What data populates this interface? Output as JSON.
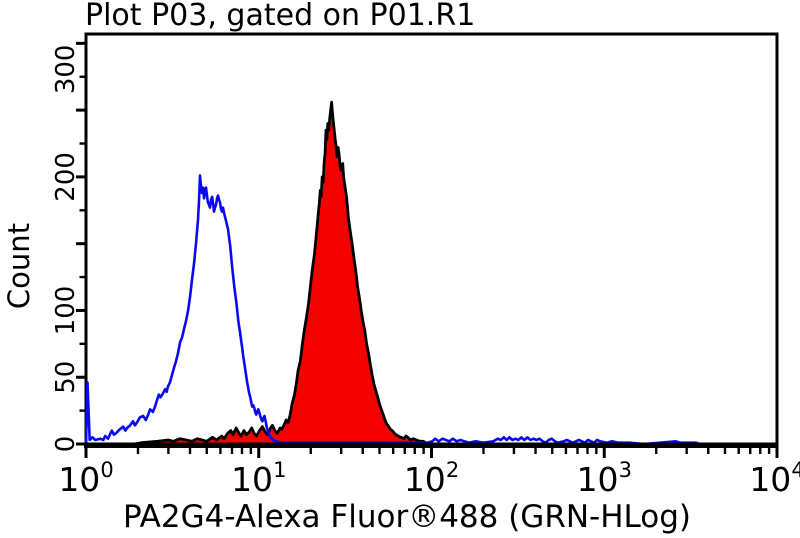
{
  "figure": {
    "background": "#ffffff",
    "plot_border_color": "#000000"
  },
  "chart_data": {
    "type": "area",
    "subtype": "flow-cytometry-overlay-histogram",
    "title": "Plot P03, gated on P01.R1",
    "xlabel": "PA2G4-Alexa Fluor®488 (GRN-HLog)",
    "ylabel": "Count",
    "x_scale": "log10",
    "xlim": [
      1,
      10000
    ],
    "ylim": [
      0,
      307
    ],
    "grid": false,
    "legend": "none",
    "x_ticks": {
      "base_text": "10",
      "exponents": [
        0,
        1,
        2,
        3,
        4
      ],
      "values": [
        1,
        10,
        100,
        1000,
        10000
      ],
      "minor_multiples": [
        2,
        3,
        4,
        5,
        6,
        7,
        8,
        9
      ]
    },
    "y_ticks": {
      "major_step": 50,
      "minor_step": 25,
      "labeled": [
        0,
        50,
        100,
        200,
        300
      ]
    },
    "series": [
      {
        "name": "control (open blue histogram)",
        "style": "open",
        "line_color": "#0a0af2",
        "fill": "none",
        "peak": {
          "x": 4.6,
          "count": 201
        },
        "points": [
          [
            1.0,
            0
          ],
          [
            1.02,
            46
          ],
          [
            1.05,
            3
          ],
          [
            1.09,
            5
          ],
          [
            1.13,
            3
          ],
          [
            1.21,
            4
          ],
          [
            1.26,
            3
          ],
          [
            1.29,
            6
          ],
          [
            1.34,
            4
          ],
          [
            1.41,
            10
          ],
          [
            1.45,
            7
          ],
          [
            1.49,
            8
          ],
          [
            1.57,
            11
          ],
          [
            1.64,
            13
          ],
          [
            1.69,
            10
          ],
          [
            1.73,
            12
          ],
          [
            1.8,
            14
          ],
          [
            1.87,
            17
          ],
          [
            1.92,
            14
          ],
          [
            1.97,
            16
          ],
          [
            2.05,
            20
          ],
          [
            2.14,
            21
          ],
          [
            2.22,
            18
          ],
          [
            2.29,
            22
          ],
          [
            2.35,
            26
          ],
          [
            2.44,
            24
          ],
          [
            2.51,
            28
          ],
          [
            2.58,
            33
          ],
          [
            2.64,
            37
          ],
          [
            2.7,
            35
          ],
          [
            2.79,
            38
          ],
          [
            2.87,
            41
          ],
          [
            2.93,
            39
          ],
          [
            2.98,
            43
          ],
          [
            3.06,
            46
          ],
          [
            3.15,
            52
          ],
          [
            3.23,
            57
          ],
          [
            3.32,
            62
          ],
          [
            3.41,
            68
          ],
          [
            3.5,
            76
          ],
          [
            3.6,
            80
          ],
          [
            3.69,
            86
          ],
          [
            3.79,
            92
          ],
          [
            3.9,
            100
          ],
          [
            4.0,
            110
          ],
          [
            4.11,
            123
          ],
          [
            4.22,
            135
          ],
          [
            4.33,
            150
          ],
          [
            4.45,
            168
          ],
          [
            4.51,
            182
          ],
          [
            4.57,
            201
          ],
          [
            4.63,
            193
          ],
          [
            4.69,
            188
          ],
          [
            4.76,
            192
          ],
          [
            4.82,
            184
          ],
          [
            4.89,
            190
          ],
          [
            4.95,
            192
          ],
          [
            5.02,
            186
          ],
          [
            5.08,
            181
          ],
          [
            5.15,
            179
          ],
          [
            5.22,
            177
          ],
          [
            5.3,
            183
          ],
          [
            5.37,
            185
          ],
          [
            5.44,
            180
          ],
          [
            5.51,
            174
          ],
          [
            5.58,
            177
          ],
          [
            5.66,
            179
          ],
          [
            5.74,
            184
          ],
          [
            5.81,
            186
          ],
          [
            5.89,
            183
          ],
          [
            5.97,
            181
          ],
          [
            6.05,
            176
          ],
          [
            6.13,
            174
          ],
          [
            6.21,
            177
          ],
          [
            6.3,
            173
          ],
          [
            6.38,
            170
          ],
          [
            6.47,
            167
          ],
          [
            6.55,
            164
          ],
          [
            6.64,
            161
          ],
          [
            6.73,
            155
          ],
          [
            6.83,
            149
          ],
          [
            6.92,
            141
          ],
          [
            7.01,
            133
          ],
          [
            7.1,
            126
          ],
          [
            7.2,
            119
          ],
          [
            7.3,
            113
          ],
          [
            7.4,
            107
          ],
          [
            7.5,
            100
          ],
          [
            7.6,
            93
          ],
          [
            7.7,
            88
          ],
          [
            7.81,
            83
          ],
          [
            7.91,
            77
          ],
          [
            8.02,
            72
          ],
          [
            8.13,
            66
          ],
          [
            8.24,
            61
          ],
          [
            8.35,
            56
          ],
          [
            8.46,
            51
          ],
          [
            8.57,
            46
          ],
          [
            8.69,
            42
          ],
          [
            8.8,
            38
          ],
          [
            8.93,
            35
          ],
          [
            9.05,
            31
          ],
          [
            9.17,
            28
          ],
          [
            9.29,
            29
          ],
          [
            9.42,
            27
          ],
          [
            9.54,
            24
          ],
          [
            9.67,
            22
          ],
          [
            9.8,
            24
          ],
          [
            9.94,
            26
          ],
          [
            10.1,
            23
          ],
          [
            10.2,
            21
          ],
          [
            10.4,
            18
          ],
          [
            10.5,
            17
          ],
          [
            10.7,
            20
          ],
          [
            10.8,
            21
          ],
          [
            11.0,
            16
          ],
          [
            11.1,
            13
          ],
          [
            11.4,
            8
          ],
          [
            11.7,
            5
          ],
          [
            12.1,
            3
          ],
          [
            12.6,
            2
          ],
          [
            13.5,
            1
          ],
          [
            16,
            1
          ],
          [
            20,
            1
          ],
          [
            30,
            1
          ],
          [
            50,
            1
          ],
          [
            75,
            1
          ],
          [
            95,
            1
          ],
          [
            101,
            2
          ],
          [
            105,
            4
          ],
          [
            110,
            2
          ],
          [
            116,
            4
          ],
          [
            121,
            3
          ],
          [
            127,
            2
          ],
          [
            133,
            4
          ],
          [
            140,
            2
          ],
          [
            147,
            3
          ],
          [
            155,
            2
          ],
          [
            165,
            1
          ],
          [
            180,
            2
          ],
          [
            200,
            1
          ],
          [
            228,
            2
          ],
          [
            242,
            4
          ],
          [
            252,
            3
          ],
          [
            262,
            5
          ],
          [
            272,
            3
          ],
          [
            283,
            5
          ],
          [
            294,
            3
          ],
          [
            306,
            4
          ],
          [
            318,
            3
          ],
          [
            331,
            5
          ],
          [
            345,
            3
          ],
          [
            359,
            5
          ],
          [
            374,
            3
          ],
          [
            389,
            4
          ],
          [
            405,
            3
          ],
          [
            422,
            4
          ],
          [
            440,
            2
          ],
          [
            458,
            1
          ],
          [
            477,
            3
          ],
          [
            497,
            4
          ],
          [
            517,
            2
          ],
          [
            539,
            1
          ],
          [
            583,
            2
          ],
          [
            607,
            3
          ],
          [
            632,
            2
          ],
          [
            658,
            1
          ],
          [
            685,
            2
          ],
          [
            713,
            3
          ],
          [
            742,
            2
          ],
          [
            773,
            1
          ],
          [
            805,
            3
          ],
          [
            838,
            2
          ],
          [
            872,
            1
          ],
          [
            909,
            3
          ],
          [
            946,
            2
          ],
          [
            1030,
            1
          ],
          [
            1110,
            2
          ],
          [
            1200,
            1
          ],
          [
            1400,
            1
          ],
          [
            1700,
            0
          ],
          [
            2600,
            2
          ],
          [
            2750,
            1
          ],
          [
            3400,
            1
          ],
          [
            3600,
            0
          ],
          [
            9000,
            0
          ],
          [
            10000,
            0
          ]
        ]
      },
      {
        "name": "PA2G4 stained (filled red histogram)",
        "style": "filled",
        "line_color": "#000000",
        "fill": "#f40000",
        "peak": {
          "x": 26,
          "count": 256
        },
        "points": [
          [
            1.0,
            0
          ],
          [
            1.9,
            0
          ],
          [
            2.1,
            1
          ],
          [
            2.6,
            2
          ],
          [
            3.0,
            3
          ],
          [
            3.2,
            2
          ],
          [
            3.5,
            4
          ],
          [
            3.8,
            3
          ],
          [
            4.1,
            2
          ],
          [
            4.4,
            4
          ],
          [
            4.7,
            3
          ],
          [
            5.0,
            2
          ],
          [
            5.4,
            5
          ],
          [
            5.7,
            3
          ],
          [
            6.1,
            6
          ],
          [
            6.3,
            4
          ],
          [
            6.6,
            8
          ],
          [
            6.9,
            10
          ],
          [
            7.1,
            7
          ],
          [
            7.4,
            12
          ],
          [
            7.7,
            8
          ],
          [
            7.9,
            6
          ],
          [
            8.2,
            10
          ],
          [
            8.5,
            7
          ],
          [
            8.8,
            9
          ],
          [
            9.1,
            12
          ],
          [
            9.4,
            8
          ],
          [
            9.7,
            6
          ],
          [
            10.1,
            10
          ],
          [
            10.5,
            13
          ],
          [
            10.9,
            9
          ],
          [
            11.3,
            7
          ],
          [
            11.7,
            12
          ],
          [
            12.0,
            14
          ],
          [
            12.4,
            10
          ],
          [
            12.8,
            8
          ],
          [
            13.3,
            12
          ],
          [
            13.6,
            11
          ],
          [
            14.1,
            15
          ],
          [
            14.4,
            18
          ],
          [
            14.8,
            16
          ],
          [
            15.2,
            22
          ],
          [
            15.6,
            30
          ],
          [
            16.1,
            37
          ],
          [
            16.5,
            45
          ],
          [
            16.9,
            55
          ],
          [
            17.4,
            62
          ],
          [
            17.9,
            75
          ],
          [
            18.4,
            86
          ],
          [
            18.9,
            95
          ],
          [
            19.4,
            105
          ],
          [
            19.9,
            118
          ],
          [
            20.4,
            130
          ],
          [
            21.0,
            142
          ],
          [
            21.6,
            158
          ],
          [
            22.1,
            172
          ],
          [
            22.4,
            180
          ],
          [
            22.7,
            190
          ],
          [
            23.0,
            185
          ],
          [
            23.3,
            200
          ],
          [
            23.6,
            196
          ],
          [
            23.9,
            210
          ],
          [
            24.2,
            218
          ],
          [
            24.5,
            235
          ],
          [
            24.8,
            228
          ],
          [
            25.1,
            240
          ],
          [
            25.4,
            235
          ],
          [
            25.8,
            245
          ],
          [
            26.1,
            250
          ],
          [
            26.4,
            256
          ],
          [
            26.7,
            248
          ],
          [
            27.1,
            240
          ],
          [
            27.4,
            234
          ],
          [
            27.7,
            228
          ],
          [
            28.1,
            222
          ],
          [
            28.4,
            215
          ],
          [
            28.8,
            222
          ],
          [
            29.1,
            218
          ],
          [
            29.5,
            210
          ],
          [
            29.9,
            205
          ],
          [
            30.6,
            210
          ],
          [
            31.0,
            200
          ],
          [
            31.4,
            195
          ],
          [
            32.2,
            185
          ],
          [
            32.6,
            178
          ],
          [
            33.0,
            170
          ],
          [
            33.8,
            160
          ],
          [
            34.7,
            150
          ],
          [
            35.5,
            140
          ],
          [
            36.4,
            130
          ],
          [
            36.8,
            125
          ],
          [
            37.3,
            118
          ],
          [
            38.2,
            110
          ],
          [
            39.2,
            100
          ],
          [
            40.1,
            92
          ],
          [
            41.1,
            85
          ],
          [
            41.6,
            80
          ],
          [
            42.1,
            75
          ],
          [
            43.2,
            68
          ],
          [
            44.2,
            60
          ],
          [
            45.3,
            52
          ],
          [
            46.4,
            45
          ],
          [
            47.6,
            40
          ],
          [
            48.8,
            35
          ],
          [
            50.0,
            30
          ],
          [
            51.2,
            26
          ],
          [
            52.5,
            22
          ],
          [
            53.8,
            18
          ],
          [
            55.1,
            15
          ],
          [
            56.5,
            13
          ],
          [
            57.9,
            11
          ],
          [
            59.3,
            10
          ],
          [
            61.0,
            8
          ],
          [
            62.5,
            7
          ],
          [
            64.1,
            6
          ],
          [
            66.6,
            5
          ],
          [
            69.3,
            4
          ],
          [
            71.1,
            6
          ],
          [
            72.9,
            5
          ],
          [
            75.6,
            3
          ],
          [
            78.4,
            4
          ],
          [
            81.9,
            3
          ],
          [
            85.6,
            2
          ],
          [
            89.5,
            2
          ],
          [
            93.0,
            1
          ],
          [
            98.0,
            0
          ],
          [
            10000,
            0
          ]
        ]
      }
    ]
  }
}
